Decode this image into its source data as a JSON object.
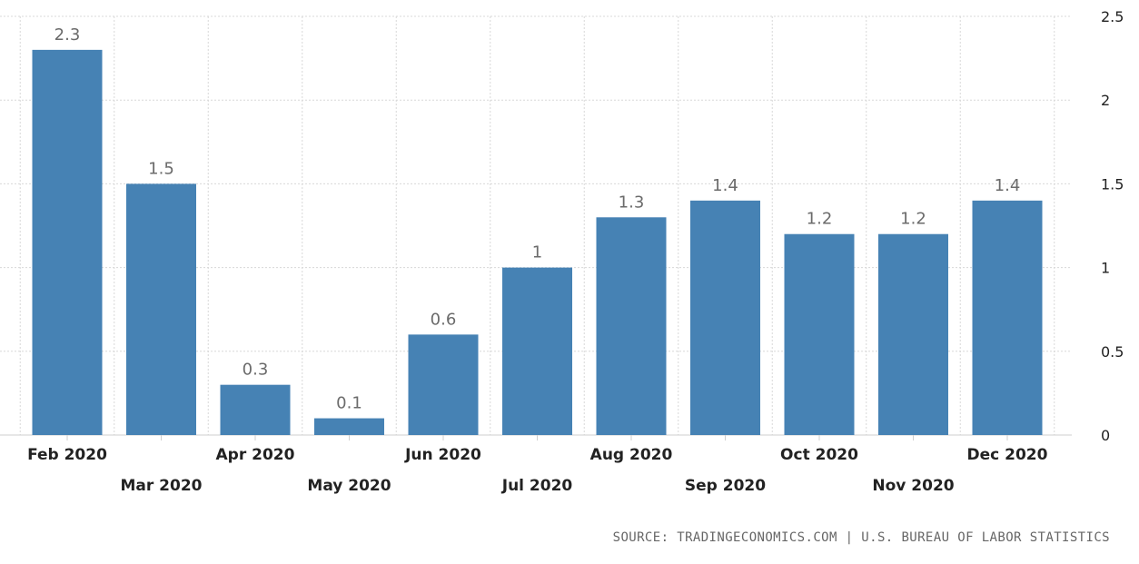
{
  "chart_data": {
    "type": "bar",
    "categories": [
      "Feb 2020",
      "Mar 2020",
      "Apr 2020",
      "May 2020",
      "Jun 2020",
      "Jul 2020",
      "Aug 2020",
      "Sep 2020",
      "Oct 2020",
      "Nov 2020",
      "Dec 2020"
    ],
    "values": [
      2.3,
      1.5,
      0.3,
      0.1,
      0.6,
      1,
      1.3,
      1.4,
      1.2,
      1.2,
      1.4
    ],
    "value_labels": [
      "2.3",
      "1.5",
      "0.3",
      "0.1",
      "0.6",
      "1",
      "1.3",
      "1.4",
      "1.2",
      "1.2",
      "1.4"
    ],
    "y_ticks": [
      "0",
      "0.5",
      "1",
      "1.5",
      "2",
      "2.5"
    ],
    "ylim": [
      0,
      2.5
    ],
    "y_axis_position": "right",
    "grid": true,
    "bar_color": "#4682b4"
  },
  "source": "SOURCE: TRADINGECONOMICS.COM | U.S. BUREAU OF LABOR STATISTICS"
}
